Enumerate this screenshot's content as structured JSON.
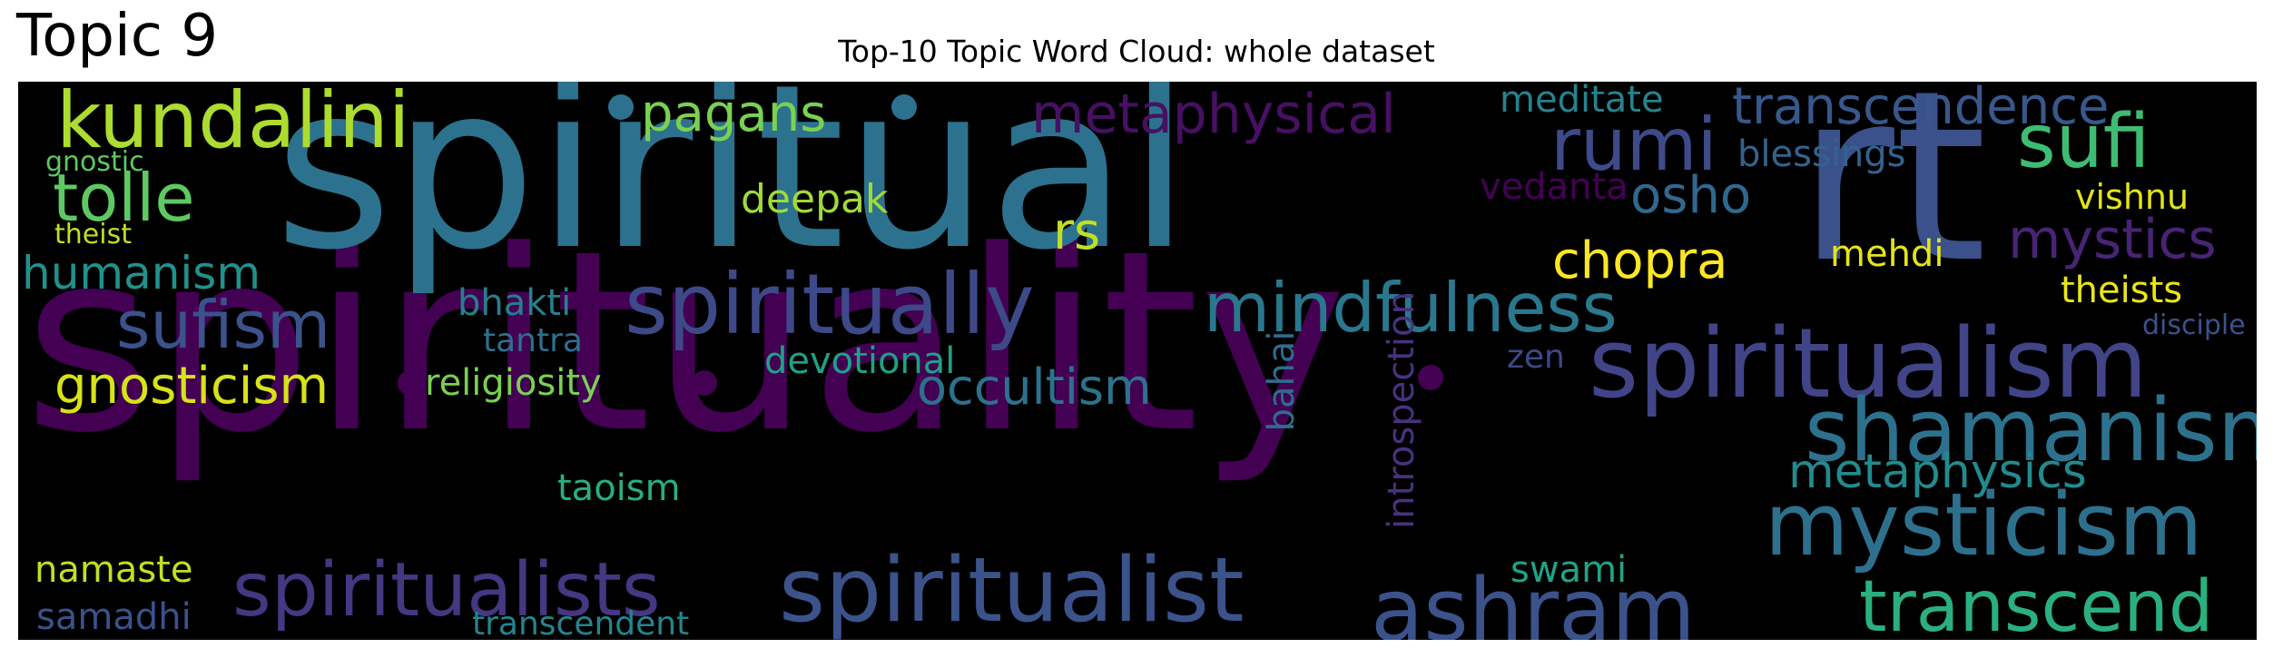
{
  "header": {
    "topic": "Topic 9",
    "title": "Top-10 Topic Word Cloud: whole dataset"
  },
  "cloud": {
    "background": "#000000",
    "words": [
      {
        "text": "spirituality",
        "color": "#440154"
      },
      {
        "text": "spiritual",
        "color": "#2c728e"
      },
      {
        "text": "rt",
        "color": "#3b518b"
      },
      {
        "text": "spiritualism",
        "color": "#414487"
      },
      {
        "text": "spiritualist",
        "color": "#3b528b"
      },
      {
        "text": "spiritualists",
        "color": "#453781"
      },
      {
        "text": "spiritually",
        "color": "#3e4989"
      },
      {
        "text": "mindfulness",
        "color": "#2a788e"
      },
      {
        "text": "shamanism",
        "color": "#2c728e"
      },
      {
        "text": "mysticism",
        "color": "#2d708e"
      },
      {
        "text": "ashram",
        "color": "#3b528b"
      },
      {
        "text": "transcend",
        "color": "#2ab07f"
      },
      {
        "text": "kundalini",
        "color": "#addc30"
      },
      {
        "text": "sufi",
        "color": "#3fbc73"
      },
      {
        "text": "rumi",
        "color": "#3e4a89"
      },
      {
        "text": "tolle",
        "color": "#5ec962"
      },
      {
        "text": "metaphysical",
        "color": "#471063"
      },
      {
        "text": "transcendence",
        "color": "#38588c"
      },
      {
        "text": "sufism",
        "color": "#3b528b"
      },
      {
        "text": "gnosticism",
        "color": "#d8e219"
      },
      {
        "text": "occultism",
        "color": "#2c728e"
      },
      {
        "text": "metaphysics",
        "color": "#238a8d"
      },
      {
        "text": "humanism",
        "color": "#21918c"
      },
      {
        "text": "pagans",
        "color": "#7ad151"
      },
      {
        "text": "mystics",
        "color": "#482475"
      },
      {
        "text": "chopra",
        "color": "#fde725"
      },
      {
        "text": "osho",
        "color": "#31688e"
      },
      {
        "text": "rs",
        "color": "#c2df23"
      },
      {
        "text": "religiosity",
        "color": "#7ad151"
      },
      {
        "text": "meditate",
        "color": "#25838e"
      },
      {
        "text": "blessings",
        "color": "#33638d"
      },
      {
        "text": "vedanta",
        "color": "#440154"
      },
      {
        "text": "deepak",
        "color": "#a0da39"
      },
      {
        "text": "mehdi",
        "color": "#e5e419"
      },
      {
        "text": "theists",
        "color": "#eae51a"
      },
      {
        "text": "vishnu",
        "color": "#e2e418"
      },
      {
        "text": "devotional",
        "color": "#1fa187"
      },
      {
        "text": "bhakti",
        "color": "#277f8e"
      },
      {
        "text": "tantra",
        "color": "#2d708e"
      },
      {
        "text": "namaste",
        "color": "#c2df23"
      },
      {
        "text": "samadhi",
        "color": "#3b528b"
      },
      {
        "text": "taoism",
        "color": "#29af7f"
      },
      {
        "text": "swami",
        "color": "#20a486"
      },
      {
        "text": "transcendent",
        "color": "#25858e"
      },
      {
        "text": "zen",
        "color": "#3e4989"
      },
      {
        "text": "disciple",
        "color": "#3b528b"
      },
      {
        "text": "gnostic",
        "color": "#5ec962"
      },
      {
        "text": "theist",
        "color": "#bddf26"
      },
      {
        "text": "bahai",
        "color": "#2f6c8e"
      },
      {
        "text": "introspection",
        "color": "#46337e"
      }
    ],
    "dots": [
      {
        "color": "#2c728e"
      },
      {
        "color": "#2c728e"
      },
      {
        "color": "#440154"
      },
      {
        "color": "#440154"
      },
      {
        "color": "#440154"
      }
    ]
  }
}
